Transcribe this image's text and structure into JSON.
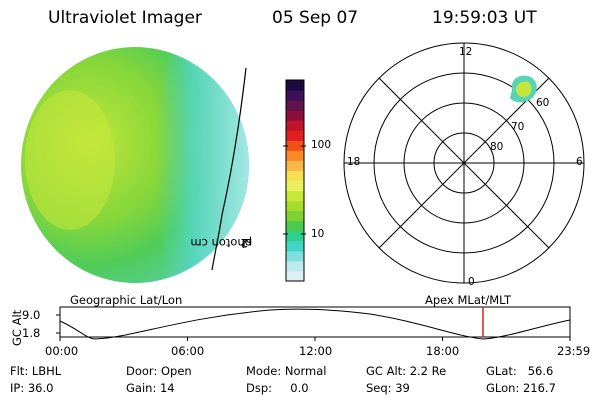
{
  "header": {
    "title": "Ultraviolet Imager",
    "date": "05 Sep 07",
    "time": "19:59:03 UT"
  },
  "colorbar": {
    "label_main": "photon cm",
    "label_exp1": "-2",
    "label_mid": "s",
    "label_exp2": "-1",
    "tick_100": "100",
    "tick_10": "10",
    "colors": [
      "#ddeef4",
      "#bfe8ee",
      "#7fdede",
      "#3fd6c6",
      "#2fd08c",
      "#49cc4c",
      "#7fd034",
      "#a8dc2c",
      "#c8ea36",
      "#e8f060",
      "#f6e050",
      "#f8b848",
      "#f68a26",
      "#f05016",
      "#e02020",
      "#c0142a",
      "#8c0e3a",
      "#60124a",
      "#3c1058",
      "#1a0a40"
    ]
  },
  "polar": {
    "mlt_top": "12",
    "mlt_bottom": "0",
    "mlt_left": "18",
    "mlt_right": "6",
    "lat_60": "60",
    "lat_70": "70",
    "lat_80": "80"
  },
  "labels": {
    "geographic": "Geographic Lat/Lon",
    "apex": "Apex  MLat/MLT"
  },
  "timeline": {
    "y_axis_label": "GC Alt",
    "y_ticks": [
      "9.0",
      "1.8"
    ],
    "x_ticks": [
      "00:00",
      "06:00",
      "12:00",
      "18:00",
      "23:59"
    ],
    "current_marker_color": "#e02020"
  },
  "footer": {
    "flt": "Flt: LBHL",
    "ip": "IP: 36.0",
    "door": "Door: Open",
    "gain": "Gain: 14",
    "mode": "Mode: Normal",
    "dsp": "Dsp:     0.0",
    "gc_alt": "GC Alt: 2.2 Re",
    "seq": "Seq: 39",
    "glat": "GLat:   56.6",
    "glon": "GLon: 216.7"
  }
}
